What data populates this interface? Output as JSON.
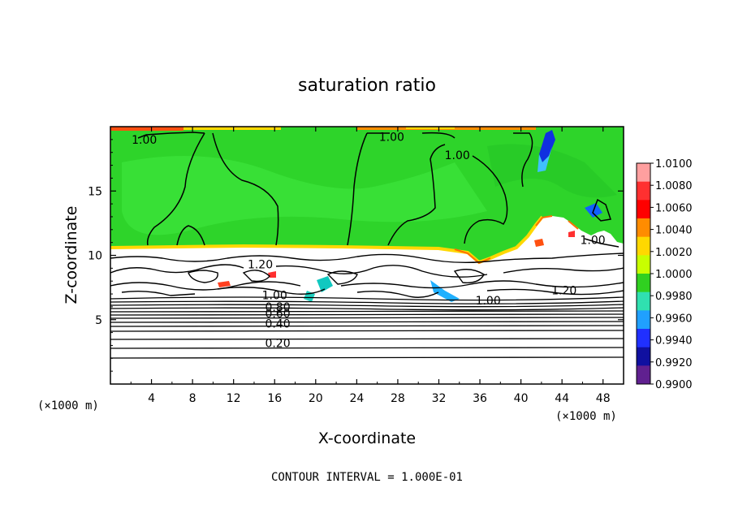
{
  "chart_data": {
    "type": "heatmap",
    "title": "saturation ratio",
    "xlabel": "X-coordinate",
    "ylabel": "Z-coordinate",
    "x_unit": "(×1000 m)",
    "z_unit": "(×1000 m)",
    "xlim": [
      0,
      50
    ],
    "ylim": [
      0,
      20
    ],
    "x_ticks": [
      4,
      8,
      12,
      16,
      20,
      24,
      28,
      32,
      36,
      40,
      44,
      48
    ],
    "y_ticks": [
      5,
      10,
      15
    ],
    "footer": "CONTOUR INTERVAL = 1.000E-01",
    "colorbar": {
      "min": 0.99,
      "max": 1.01,
      "levels": [
        "1.0100",
        "1.0080",
        "1.0060",
        "1.0040",
        "1.0020",
        "1.0000",
        "0.9980",
        "0.9960",
        "0.9940",
        "0.9920",
        "0.9900"
      ],
      "colors": [
        "#ff9f9f",
        "#ff3030",
        "#ff0000",
        "#ff8c00",
        "#ffd800",
        "#c8ff00",
        "#30d020",
        "#30e0b0",
        "#20a0ff",
        "#2030ff",
        "#1010a0",
        "#602090"
      ]
    },
    "contour_labels": [
      {
        "text": "1.00",
        "x": 3.3,
        "z": 19.0
      },
      {
        "text": "1.00",
        "x": 27.4,
        "z": 19.2
      },
      {
        "text": "1.00",
        "x": 33.8,
        "z": 17.8
      },
      {
        "text": "1.00",
        "x": 47.0,
        "z": 11.2
      },
      {
        "text": "1.20",
        "x": 14.6,
        "z": 9.3
      },
      {
        "text": "1.20",
        "x": 44.2,
        "z": 7.3
      },
      {
        "text": "1.00",
        "x": 36.8,
        "z": 6.5
      },
      {
        "text": "1.00",
        "x": 16.0,
        "z": 6.9
      },
      {
        "text": "0.80",
        "x": 16.3,
        "z": 6.0
      },
      {
        "text": "0.60",
        "x": 16.3,
        "z": 5.5
      },
      {
        "text": "0.40",
        "x": 16.3,
        "z": 4.7
      },
      {
        "text": "0.20",
        "x": 16.3,
        "z": 3.2
      }
    ]
  }
}
